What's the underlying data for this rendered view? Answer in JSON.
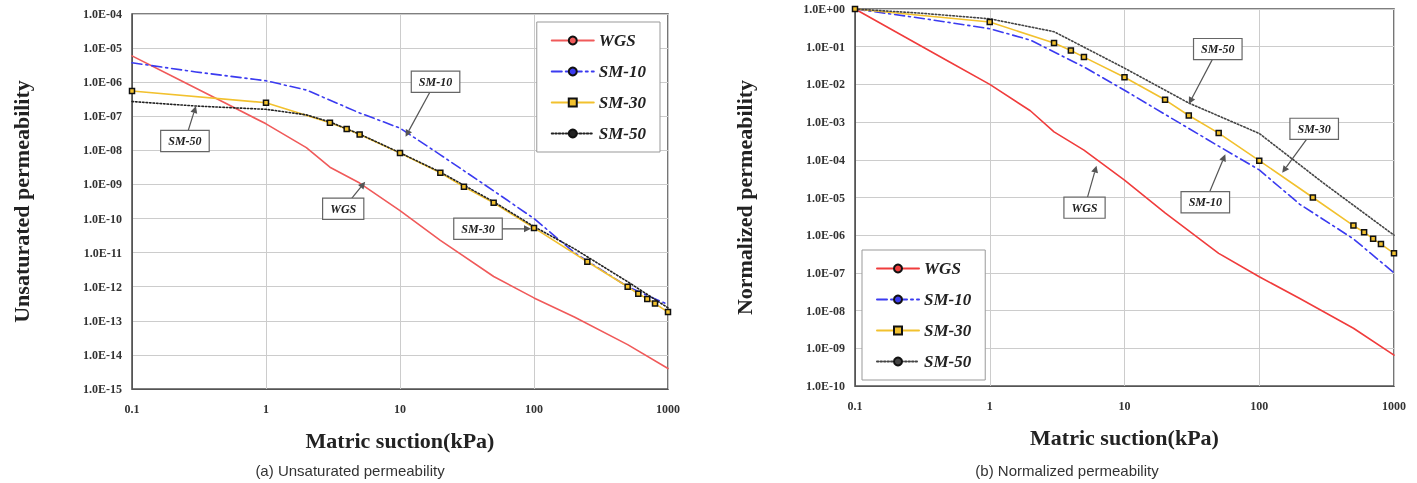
{
  "chart_data": [
    {
      "type": "line",
      "title": "(a) Unsaturated permeability",
      "xlabel": "Matric suction(kPa)",
      "ylabel": "Unsaturated permeability",
      "log": "xy",
      "grid": true,
      "legend": "top right",
      "xlim": [
        0.1,
        1000
      ],
      "xticks": [
        0.1,
        1,
        10,
        100,
        1000
      ],
      "ylim": [
        1e-15,
        0.0001
      ],
      "yticks": [
        {
          "value": 1e-15,
          "label": "1.0E-15"
        },
        {
          "value": 1e-14,
          "label": "1.0E-14"
        },
        {
          "value": 1e-13,
          "label": "1.0E-13"
        },
        {
          "value": 1e-12,
          "label": "1.0E-12"
        },
        {
          "value": 1e-11,
          "label": "1.0E-11"
        },
        {
          "value": 1e-10,
          "label": "1.0E-10"
        },
        {
          "value": 1e-09,
          "label": "1.0E-09"
        },
        {
          "value": 1e-08,
          "label": "1.0E-08"
        },
        {
          "value": 1e-07,
          "label": "1.0E-07"
        },
        {
          "value": 1e-06,
          "label": "1.0E-06"
        },
        {
          "value": 1e-05,
          "label": "1.0E-05"
        },
        {
          "value": 0.0001,
          "label": "1.0E-04"
        }
      ],
      "series": [
        {
          "name": "WGS",
          "color": "#f05a5a",
          "line_style": "solid",
          "marker": "none",
          "x": [
            0.1,
            0.2,
            0.5,
            1,
            2,
            3,
            5,
            10,
            20,
            50,
            100,
            200,
            500,
            1000
          ],
          "values": [
            5.9e-06,
            1.5e-06,
            2.4e-07,
            6e-08,
            1.2e-08,
            3.2e-09,
            1.1e-09,
            1.7e-10,
            2.3e-11,
            2e-12,
            4.7e-13,
            1.3e-13,
            2e-14,
            4e-15
          ]
        },
        {
          "name": "SM-10",
          "color": "#3b3bf0",
          "line_style": "dashdot",
          "marker": "none",
          "x": [
            0.1,
            0.3,
            1,
            2,
            5,
            10,
            20,
            50,
            100,
            200,
            500,
            1000
          ],
          "values": [
            3.7e-06,
            2e-06,
            1.1e-06,
            5.9e-07,
            1.25e-07,
            4.5e-08,
            7.4e-09,
            6.5e-10,
            1e-10,
            1e-11,
            1e-12,
            3e-13
          ]
        },
        {
          "name": "SM-30",
          "color": "#f2c12e",
          "line_style": "solid",
          "marker": "square",
          "x": [
            0.1,
            1,
            3,
            4,
            5,
            10,
            20,
            30,
            50,
            100,
            250,
            500,
            600,
            700,
            800,
            1000
          ],
          "values": [
            5.5e-07,
            2.5e-07,
            6.5e-08,
            4.2e-08,
            2.9e-08,
            8.3e-09,
            2.2e-09,
            8.5e-10,
            2.9e-10,
            5.3e-11,
            5.4e-12,
            1e-12,
            6.2e-13,
            4.4e-13,
            3.2e-13,
            1.8e-13
          ]
        },
        {
          "name": "SM-50",
          "color": "#222222",
          "line_style": "dotted",
          "marker": "none",
          "x": [
            0.1,
            0.3,
            1,
            2,
            3,
            5,
            10,
            20,
            50,
            100,
            200,
            500,
            1000
          ],
          "values": [
            2.7e-07,
            2e-07,
            1.6e-07,
            1.1e-07,
            6.8e-08,
            3e-08,
            8.5e-09,
            2.3e-09,
            3.1e-10,
            5.8e-11,
            1.3e-11,
            1.4e-12,
            2.4e-13
          ]
        }
      ],
      "annotations": [
        {
          "text": "SM-10",
          "x": 11,
          "y": 2.5e-08
        },
        {
          "text": "SM-50",
          "x": 0.3,
          "y": 2e-07
        },
        {
          "text": "WGS",
          "x": 5.5,
          "y": 1.2e-09
        },
        {
          "text": "SM-30",
          "x": 95,
          "y": 5e-11
        }
      ]
    },
    {
      "type": "line",
      "title": "(b) Normalized permeability",
      "xlabel": "Matric suction(kPa)",
      "ylabel": "Normalized permeability",
      "log": "xy",
      "grid": true,
      "legend": "bottom left",
      "xlim": [
        0.1,
        1000
      ],
      "xticks": [
        0.1,
        1,
        10,
        100,
        1000
      ],
      "ylim": [
        1e-10,
        1
      ],
      "yticks": [
        {
          "value": 1e-10,
          "label": "1.0E-10"
        },
        {
          "value": 1e-09,
          "label": "1.0E-09"
        },
        {
          "value": 1e-08,
          "label": "1.0E-08"
        },
        {
          "value": 1e-07,
          "label": "1.0E-07"
        },
        {
          "value": 1e-06,
          "label": "1.0E-06"
        },
        {
          "value": 1e-05,
          "label": "1.0E-05"
        },
        {
          "value": 0.0001,
          "label": "1.0E-04"
        },
        {
          "value": 0.001,
          "label": "1.0E-03"
        },
        {
          "value": 0.01,
          "label": "1.0E-02"
        },
        {
          "value": 0.1,
          "label": "1.0E-01"
        },
        {
          "value": 1,
          "label": "1.0E+00"
        }
      ],
      "series": [
        {
          "name": "WGS",
          "color": "#f03c3c",
          "line_style": "solid",
          "marker": "none",
          "x": [
            0.1,
            0.2,
            0.5,
            1,
            2,
            3,
            5,
            10,
            20,
            50,
            100,
            200,
            500,
            1000
          ],
          "values": [
            1,
            0.25,
            0.04,
            0.01,
            0.002,
            0.00055,
            0.00018,
            2.9e-05,
            3.9e-06,
            3.3e-07,
            7.9e-08,
            2.1e-08,
            3.4e-09,
            6.6e-10
          ]
        },
        {
          "name": "SM-10",
          "color": "#3b3bf0",
          "line_style": "dashdot",
          "marker": "none",
          "x": [
            0.1,
            0.3,
            1,
            2,
            5,
            10,
            20,
            50,
            100,
            200,
            500,
            1000
          ],
          "values": [
            1,
            0.58,
            0.3,
            0.15,
            0.029,
            0.007,
            0.0016,
            0.00023,
            5.4e-05,
            6.6e-06,
            8e-07,
            1e-07
          ]
        },
        {
          "name": "SM-30",
          "color": "#f2c12e",
          "line_style": "solid",
          "marker": "square",
          "x": [
            0.1,
            1,
            3,
            4,
            5,
            10,
            20,
            30,
            50,
            100,
            250,
            500,
            600,
            700,
            800,
            1000
          ],
          "values": [
            1,
            0.45,
            0.126,
            0.079,
            0.053,
            0.0155,
            0.0039,
            0.0015,
            0.00051,
            9.5e-05,
            1e-05,
            1.8e-06,
            1.2e-06,
            8e-07,
            5.8e-07,
            3.3e-07
          ]
        },
        {
          "name": "SM-50",
          "color": "#444444",
          "line_style": "dotted",
          "marker": "none",
          "x": [
            0.1,
            0.3,
            1,
            3,
            10,
            30,
            100,
            300,
            1000
          ],
          "values": [
            1,
            0.78,
            0.55,
            0.25,
            0.027,
            0.0032,
            0.0005,
            2.4e-05,
            1e-06
          ]
        }
      ],
      "annotations": [
        {
          "text": "SM-50",
          "x": 30,
          "y": 0.003
        },
        {
          "text": "SM-30",
          "x": 148,
          "y": 4.5e-05
        },
        {
          "text": "SM-10",
          "x": 56,
          "y": 0.00014
        },
        {
          "text": "WGS",
          "x": 6.2,
          "y": 7e-05
        }
      ]
    }
  ]
}
